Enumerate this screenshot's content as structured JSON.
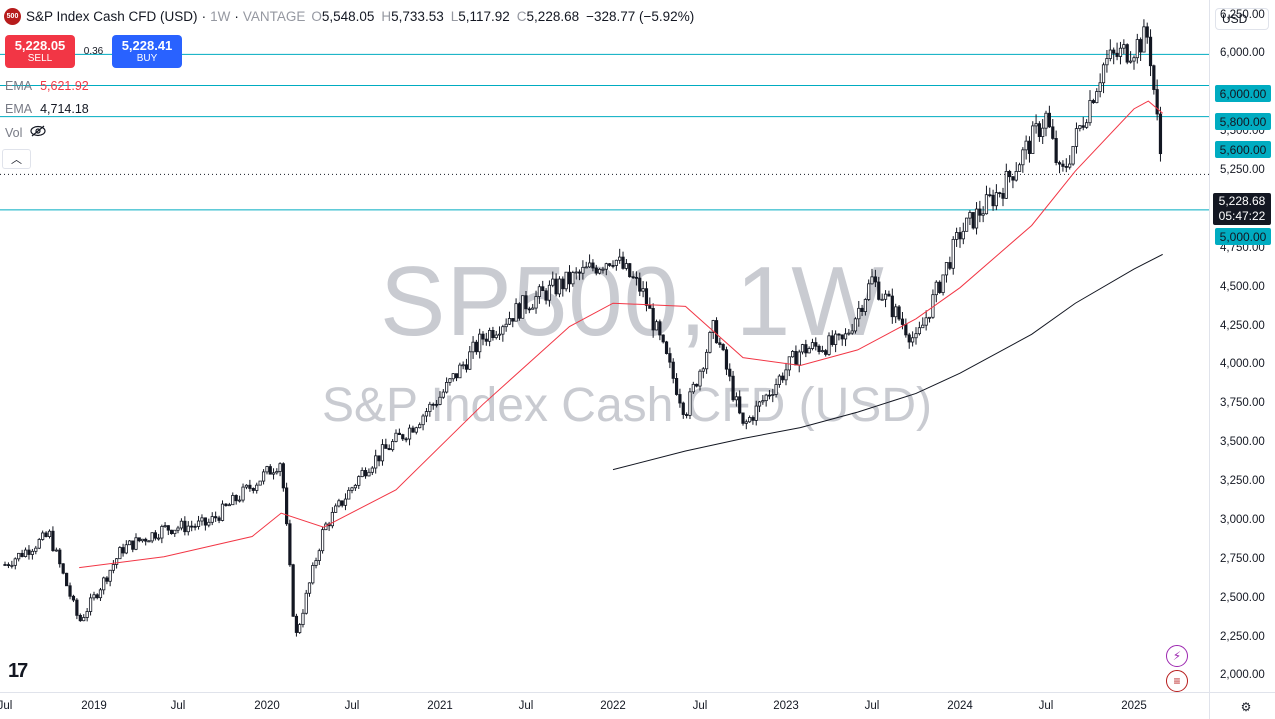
{
  "legend": {
    "badge": "500",
    "title": "S&P Index Cash CFD (USD)",
    "interval": "1W",
    "source": "VANTAGE",
    "open_label": "O",
    "open": "5,548.05",
    "high_label": "H",
    "high": "5,733.53",
    "low_label": "L",
    "low": "5,117.92",
    "close_label": "C",
    "close": "5,228.68",
    "change": "−328.77 (−5.92%)"
  },
  "trade": {
    "sell_price": "5,228.05",
    "sell_label": "SELL",
    "spread": "0.36",
    "buy_price": "5,228.41",
    "buy_label": "BUY"
  },
  "indicators": [
    {
      "name": "EMA",
      "value": "5,621.92",
      "color": "#f23645"
    },
    {
      "name": "EMA",
      "value": "4,714.18",
      "color": "#131722"
    },
    {
      "name": "Vol",
      "value": ""
    }
  ],
  "currency": "USD",
  "watermark": {
    "symbol": "SP500, 1W",
    "description": "S&P Index Cash CFD (USD)"
  },
  "price_axis": [
    "6,250.00",
    "6,000.00",
    "5,750.00",
    "5,500.00",
    "5,250.00",
    "5,000.00",
    "4,750.00",
    "4,500.00",
    "4,250.00",
    "4,000.00",
    "3,750.00",
    "3,500.00",
    "3,250.00",
    "3,000.00",
    "2,750.00",
    "2,500.00",
    "2,250.00",
    "2,000.00"
  ],
  "price_axis_values": [
    6250,
    6000,
    5750,
    5500,
    5250,
    5000,
    4750,
    4500,
    4250,
    4000,
    3750,
    3500,
    3250,
    3000,
    2750,
    2500,
    2250,
    2000
  ],
  "time_axis": [
    "Jul",
    "2019",
    "Jul",
    "2020",
    "Jul",
    "2021",
    "Jul",
    "2022",
    "Jul",
    "2023",
    "Jul",
    "2024",
    "Jul",
    "2025"
  ],
  "level_labels": [
    "6,000.00",
    "5,800.00",
    "5,600.00",
    "5,000.00"
  ],
  "last_price": {
    "price": "5,228.68",
    "countdown": "05:47:22"
  },
  "colors": {
    "up": "#131722",
    "down": "#131722",
    "hline": "#00acc1",
    "ema_fast": "#f23645",
    "ema_slow": "#131722",
    "sell": "#f23645",
    "buy": "#2962ff"
  },
  "chart_data": {
    "type": "candlestick",
    "title": "S&P Index Cash CFD (USD)",
    "interval": "1W",
    "y_range": [
      1900,
      6350
    ],
    "horizontal_levels": [
      6000,
      5800,
      5600,
      5000
    ],
    "close_series": {
      "x": [
        "2018-07",
        "2018-10",
        "2018-12",
        "2019-03",
        "2019-06",
        "2019-09",
        "2019-12",
        "2020-02",
        "2020-03",
        "2020-05",
        "2020-08",
        "2020-11",
        "2021-01",
        "2021-04",
        "2021-07",
        "2021-10",
        "2022-01",
        "2022-03",
        "2022-06",
        "2022-08",
        "2022-10",
        "2022-12",
        "2023-02",
        "2023-05",
        "2023-07",
        "2023-10",
        "2024-01",
        "2024-04",
        "2024-07",
        "2024-08",
        "2024-11",
        "2025-01",
        "2025-02",
        "2025-03"
      ],
      "y": [
        2720,
        2910,
        2350,
        2820,
        2950,
        2980,
        3230,
        3390,
        2240,
        2950,
        3350,
        3600,
        3800,
        4180,
        4400,
        4550,
        4700,
        4480,
        3700,
        4250,
        3600,
        3850,
        4100,
        4150,
        4550,
        4150,
        4850,
        5150,
        5600,
        5200,
        5950,
        6050,
        6120,
        5228
      ]
    },
    "ema_fast_series": {
      "name": "EMA",
      "x": [
        "2018-12",
        "2019-06",
        "2019-12",
        "2020-02",
        "2020-05",
        "2020-10",
        "2021-04",
        "2021-10",
        "2022-01",
        "2022-06",
        "2022-10",
        "2023-02",
        "2023-06",
        "2023-10",
        "2024-01",
        "2024-06",
        "2024-09",
        "2025-01",
        "2025-02",
        "2025-03"
      ],
      "y": [
        2700,
        2770,
        2900,
        3050,
        2960,
        3200,
        3750,
        4250,
        4400,
        4380,
        4050,
        4000,
        4100,
        4300,
        4500,
        4900,
        5250,
        5650,
        5700,
        5621.92
      ]
    },
    "ema_slow_series": {
      "name": "EMA",
      "x": [
        "2022-01",
        "2022-06",
        "2022-10",
        "2023-02",
        "2023-06",
        "2023-10",
        "2024-01",
        "2024-06",
        "2024-09",
        "2025-01",
        "2025-03"
      ],
      "y": [
        3330,
        3450,
        3530,
        3600,
        3700,
        3820,
        3950,
        4200,
        4400,
        4620,
        4714.18
      ]
    }
  }
}
